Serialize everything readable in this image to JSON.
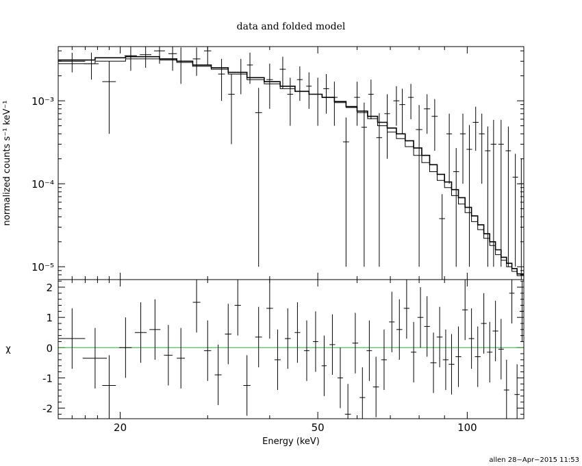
{
  "chart_data": [
    {
      "type": "line",
      "panel": "top",
      "title": "data and folded model",
      "ylabel": "normalized counts s⁻¹ keV⁻¹",
      "xscale": "log",
      "yscale": "log",
      "xlim": [
        15,
        130
      ],
      "ylim": [
        7e-06,
        0.0045
      ],
      "x_ticks": [
        20,
        50,
        100
      ],
      "y_ticks": [
        {
          "value": 1e-05,
          "label": "10⁻⁵"
        },
        {
          "value": 0.0001,
          "label": "10⁻⁴"
        },
        {
          "value": 0.001,
          "label": "10⁻³"
        }
      ],
      "series": [
        {
          "kind": "data",
          "points": [
            [
              16.0,
              0.003,
              1.0,
              0.0008
            ],
            [
              17.5,
              0.0028,
              0.6,
              0.001
            ],
            [
              19.0,
              0.0017,
              0.6,
              0.0013
            ],
            [
              21.0,
              0.0035,
              0.6,
              0.0012
            ],
            [
              22.5,
              0.0036,
              0.6,
              0.0011
            ],
            [
              24.0,
              0.004,
              0.6,
              0.0012
            ],
            [
              25.5,
              0.0037,
              0.5,
              0.0014
            ],
            [
              26.5,
              0.003,
              0.4,
              0.0014
            ],
            [
              28.5,
              0.0032,
              0.5,
              0.0012
            ],
            [
              30.0,
              0.004,
              0.5,
              0.0013
            ],
            [
              32.0,
              0.0021,
              0.5,
              0.0011
            ],
            [
              33.5,
              0.0012,
              0.5,
              0.0009
            ],
            [
              35.0,
              0.0022,
              0.5,
              0.001
            ],
            [
              36.5,
              0.0027,
              0.5,
              0.0011
            ],
            [
              38.0,
              0.00072,
              0.6,
              0.00071
            ],
            [
              40.0,
              0.0018,
              0.6,
              0.001
            ],
            [
              42.5,
              0.0024,
              0.6,
              0.001
            ],
            [
              44.0,
              0.0012,
              0.6,
              0.0007
            ],
            [
              46.0,
              0.0018,
              0.6,
              0.0008
            ],
            [
              48.0,
              0.0015,
              0.6,
              0.0007
            ],
            [
              50.0,
              0.0012,
              0.6,
              0.0007
            ],
            [
              52.0,
              0.0014,
              0.7,
              0.0007
            ],
            [
              54.0,
              0.0011,
              0.8,
              0.0006
            ],
            [
              57.0,
              0.00032,
              0.8,
              0.00031
            ],
            [
              60.0,
              0.0011,
              0.8,
              0.0006
            ],
            [
              62.0,
              0.00048,
              0.8,
              0.00047
            ],
            [
              64.0,
              0.0012,
              0.8,
              0.0006
            ],
            [
              66.5,
              0.00036,
              0.9,
              0.00035
            ],
            [
              69.0,
              0.0007,
              0.9,
              0.0005
            ],
            [
              72.0,
              0.001,
              1.0,
              0.0005
            ],
            [
              74.0,
              0.0009,
              1.0,
              0.0005
            ],
            [
              77.0,
              0.0011,
              1.0,
              0.0005
            ],
            [
              80.0,
              0.00045,
              1.2,
              0.00044
            ],
            [
              83.0,
              0.0008,
              1.2,
              0.0004
            ],
            [
              86.0,
              0.00065,
              1.2,
              0.0004
            ],
            [
              89.0,
              3.8e-05,
              1.2,
              3.7e-05
            ],
            [
              92.0,
              0.0004,
              1.2,
              0.0003
            ],
            [
              95.0,
              0.00014,
              1.3,
              0.00013
            ],
            [
              98.0,
              0.0004,
              1.3,
              0.0003
            ],
            [
              101.0,
              0.00026,
              1.3,
              0.00025
            ],
            [
              104.0,
              0.00055,
              1.4,
              0.0003
            ],
            [
              107.0,
              0.0004,
              1.4,
              0.0003
            ],
            [
              110.0,
              0.00025,
              1.4,
              0.00024
            ],
            [
              113.0,
              0.0003,
              1.5,
              0.00029
            ],
            [
              117.0,
              0.0003,
              1.5,
              0.00029
            ],
            [
              121.0,
              0.00025,
              1.5,
              0.00024
            ],
            [
              125.0,
              0.00012,
              1.6,
              0.00011
            ],
            [
              128.5,
              0.0001,
              1.5,
              9.9e-05
            ]
          ]
        },
        {
          "kind": "model",
          "steps": [
            [
              15,
              0.0031
            ],
            [
              17.8,
              0.0033
            ],
            [
              20.5,
              0.0034
            ],
            [
              24.0,
              0.0032
            ],
            [
              26.0,
              0.003
            ],
            [
              28.0,
              0.0027
            ],
            [
              30.5,
              0.0025
            ],
            [
              33.0,
              0.0022
            ],
            [
              36.0,
              0.0019
            ],
            [
              39.0,
              0.0017
            ],
            [
              42.0,
              0.0015
            ],
            [
              45.0,
              0.0013
            ],
            [
              48.0,
              0.0012
            ],
            [
              51.0,
              0.0011
            ],
            [
              54.0,
              0.00098
            ],
            [
              57.0,
              0.00085
            ],
            [
              60.0,
              0.00075
            ],
            [
              63.0,
              0.00065
            ],
            [
              66.0,
              0.00055
            ],
            [
              69.0,
              0.00047
            ],
            [
              72.0,
              0.0004
            ],
            [
              75.0,
              0.00033
            ],
            [
              78.0,
              0.00027
            ],
            [
              81.0,
              0.00022
            ],
            [
              84.0,
              0.00017
            ],
            [
              87.0,
              0.00013
            ],
            [
              90.0,
              0.000105
            ],
            [
              93.0,
              8.5e-05
            ],
            [
              96.0,
              6.8e-05
            ],
            [
              99.0,
              5.2e-05
            ],
            [
              102.0,
              4.1e-05
            ],
            [
              105.0,
              3.2e-05
            ],
            [
              108.0,
              2.5e-05
            ],
            [
              111.0,
              2e-05
            ],
            [
              114.0,
              1.6e-05
            ],
            [
              117.0,
              1.3e-05
            ],
            [
              120.0,
              1.1e-05
            ],
            [
              123.0,
              9.5e-06
            ],
            [
              126.0,
              8.2e-06
            ],
            [
              130,
              8.2e-06
            ]
          ]
        },
        {
          "kind": "model",
          "steps": [
            [
              15,
              0.0028
            ],
            [
              17.8,
              0.003
            ],
            [
              20.5,
              0.0032
            ],
            [
              24.0,
              0.0031
            ],
            [
              26.0,
              0.0029
            ],
            [
              28.0,
              0.0026
            ],
            [
              30.5,
              0.0024
            ],
            [
              33.0,
              0.0021
            ],
            [
              36.0,
              0.0018
            ],
            [
              39.0,
              0.0016
            ],
            [
              42.0,
              0.0014
            ],
            [
              45.0,
              0.0013
            ],
            [
              48.0,
              0.0012
            ],
            [
              51.0,
              0.0011
            ],
            [
              54.0,
              0.00095
            ],
            [
              57.0,
              0.00083
            ],
            [
              60.0,
              0.00072
            ],
            [
              63.0,
              0.00061
            ],
            [
              66.0,
              0.0005
            ],
            [
              69.0,
              0.00042
            ],
            [
              72.0,
              0.00035
            ],
            [
              75.0,
              0.00028
            ],
            [
              78.0,
              0.00022
            ],
            [
              81.0,
              0.00018
            ],
            [
              84.0,
              0.00014
            ],
            [
              87.0,
              0.00011
            ],
            [
              90.0,
              9e-05
            ],
            [
              93.0,
              7.2e-05
            ],
            [
              96.0,
              5.7e-05
            ],
            [
              99.0,
              4.5e-05
            ],
            [
              102.0,
              3.5e-05
            ],
            [
              105.0,
              2.8e-05
            ],
            [
              108.0,
              2.2e-05
            ],
            [
              111.0,
              1.8e-05
            ],
            [
              114.0,
              1.4e-05
            ],
            [
              117.0,
              1.2e-05
            ],
            [
              120.0,
              1e-05
            ],
            [
              123.0,
              8.8e-06
            ],
            [
              126.0,
              7.8e-06
            ],
            [
              130,
              7.8e-06
            ]
          ]
        }
      ]
    },
    {
      "type": "scatter",
      "panel": "bottom",
      "xlabel": "Energy (keV)",
      "ylabel": "χ",
      "xscale": "log",
      "xlim": [
        15,
        130
      ],
      "ylim": [
        -2.35,
        2.25
      ],
      "x_ticks": [
        20,
        50,
        100
      ],
      "y_ticks": [
        -2,
        -1,
        0,
        1,
        2
      ],
      "reference_line": {
        "y": 0,
        "color": "#00cc00"
      },
      "points": [
        [
          16.0,
          0.3,
          1.0,
          1.0
        ],
        [
          17.8,
          -0.35,
          1.0,
          1.0
        ],
        [
          19.0,
          -1.25,
          0.6,
          1.0
        ],
        [
          20.5,
          0.0,
          0.6,
          1.0
        ],
        [
          22.0,
          0.5,
          0.6,
          1.0
        ],
        [
          23.5,
          0.6,
          0.6,
          1.0
        ],
        [
          25.0,
          -0.25,
          0.5,
          1.0
        ],
        [
          26.5,
          -0.35,
          0.5,
          1.0
        ],
        [
          28.5,
          1.5,
          0.5,
          1.0
        ],
        [
          30.0,
          -0.1,
          0.5,
          1.0
        ],
        [
          31.5,
          -0.9,
          0.5,
          1.0
        ],
        [
          33.0,
          0.45,
          0.5,
          1.0
        ],
        [
          34.5,
          1.4,
          0.5,
          1.0
        ],
        [
          36.0,
          -1.25,
          0.6,
          1.0
        ],
        [
          38.0,
          0.35,
          0.6,
          1.0
        ],
        [
          40.0,
          1.3,
          0.6,
          1.0
        ],
        [
          41.5,
          -0.4,
          0.6,
          1.0
        ],
        [
          43.5,
          0.3,
          0.6,
          1.0
        ],
        [
          45.5,
          0.5,
          0.6,
          1.0
        ],
        [
          47.5,
          -0.1,
          0.6,
          1.0
        ],
        [
          49.5,
          0.2,
          0.6,
          1.0
        ],
        [
          51.5,
          -0.6,
          0.6,
          1.0
        ],
        [
          53.5,
          0.1,
          0.7,
          1.0
        ],
        [
          55.5,
          -1.0,
          0.7,
          1.0
        ],
        [
          57.5,
          -2.2,
          0.8,
          1.0
        ],
        [
          59.5,
          0.15,
          0.8,
          1.0
        ],
        [
          61.5,
          -1.65,
          0.8,
          1.0
        ],
        [
          63.5,
          -0.1,
          0.8,
          1.0
        ],
        [
          65.5,
          -1.3,
          0.9,
          1.0
        ],
        [
          68.0,
          -0.4,
          0.9,
          1.0
        ],
        [
          70.5,
          0.85,
          0.9,
          1.0
        ],
        [
          73.0,
          0.6,
          1.0,
          1.0
        ],
        [
          75.5,
          1.3,
          1.0,
          1.0
        ],
        [
          78.0,
          -0.15,
          1.0,
          1.0
        ],
        [
          80.5,
          1.0,
          1.1,
          1.0
        ],
        [
          83.0,
          0.7,
          1.1,
          1.0
        ],
        [
          85.5,
          -0.5,
          1.2,
          1.0
        ],
        [
          88.0,
          0.35,
          1.2,
          1.0
        ],
        [
          90.5,
          -0.4,
          1.2,
          1.0
        ],
        [
          93.0,
          -0.55,
          1.2,
          1.0
        ],
        [
          96.0,
          -0.3,
          1.3,
          1.0
        ],
        [
          99.0,
          1.25,
          1.3,
          1.0
        ],
        [
          102.0,
          0.3,
          1.3,
          1.0
        ],
        [
          105.0,
          -0.3,
          1.4,
          1.0
        ],
        [
          108.0,
          0.8,
          1.4,
          1.0
        ],
        [
          111.0,
          -0.15,
          1.4,
          1.0
        ],
        [
          114.0,
          0.55,
          1.5,
          1.0
        ],
        [
          117.0,
          -0.05,
          1.5,
          1.0
        ],
        [
          120.0,
          -1.4,
          1.5,
          1.0
        ],
        [
          123.0,
          1.8,
          1.5,
          1.0
        ],
        [
          126.0,
          -1.55,
          1.5,
          1.0
        ],
        [
          129.0,
          1.2,
          1.5,
          1.0
        ]
      ]
    }
  ],
  "footer": "allen 28−Apr−2015 11:53"
}
